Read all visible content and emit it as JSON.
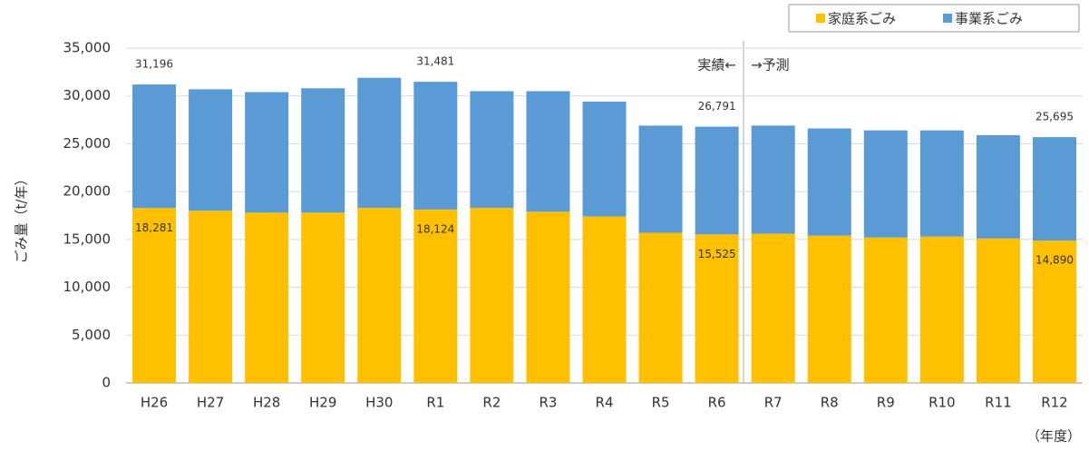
{
  "chart_data": {
    "type": "stacked_bar",
    "y_label": "ごみ量（t/年）",
    "x_unit": "（年度）",
    "categories": [
      "H26",
      "H27",
      "H28",
      "H29",
      "H30",
      "R1",
      "R2",
      "R3",
      "R4",
      "R5",
      "R6",
      "R7",
      "R8",
      "R9",
      "R10",
      "R11",
      "R12"
    ],
    "series": [
      {
        "name": "家庭系ごみ",
        "color": "#ffc000",
        "values": [
          18281,
          18000,
          17800,
          17800,
          18300,
          18124,
          18300,
          17900,
          17400,
          15700,
          15525,
          15600,
          15400,
          15200,
          15300,
          15100,
          14890
        ],
        "value_labels": [
          "18,281",
          null,
          null,
          null,
          null,
          "18,124",
          null,
          null,
          null,
          null,
          "15,525",
          null,
          null,
          null,
          null,
          null,
          "14,890"
        ]
      },
      {
        "name": "事業系ごみ",
        "color": "#5b9bd5",
        "values": [
          12915,
          12700,
          12600,
          13000,
          13600,
          13357,
          12200,
          12600,
          12000,
          11200,
          11266,
          11300,
          11200,
          11200,
          11100,
          10800,
          10805
        ]
      }
    ],
    "total_labels": [
      "31,196",
      null,
      null,
      null,
      null,
      "31,481",
      null,
      null,
      null,
      null,
      "26,791",
      null,
      null,
      null,
      null,
      null,
      "25,695"
    ],
    "annotations": {
      "actual": "実績←",
      "forecast": "→予測"
    },
    "ylim": [
      0,
      35000
    ],
    "yticks": [
      0,
      {
        "value": 5000,
        "label": "5,000"
      },
      {
        "value": 10000,
        "label": "10,000"
      },
      {
        "value": 15000,
        "label": "15,000"
      },
      {
        "value": 20000,
        "label": "20,000"
      },
      {
        "value": 25000,
        "label": "25,000"
      },
      {
        "value": 30000,
        "label": "30,000"
      },
      {
        "value": 35000,
        "label": "35,000"
      }
    ],
    "grid": true
  }
}
